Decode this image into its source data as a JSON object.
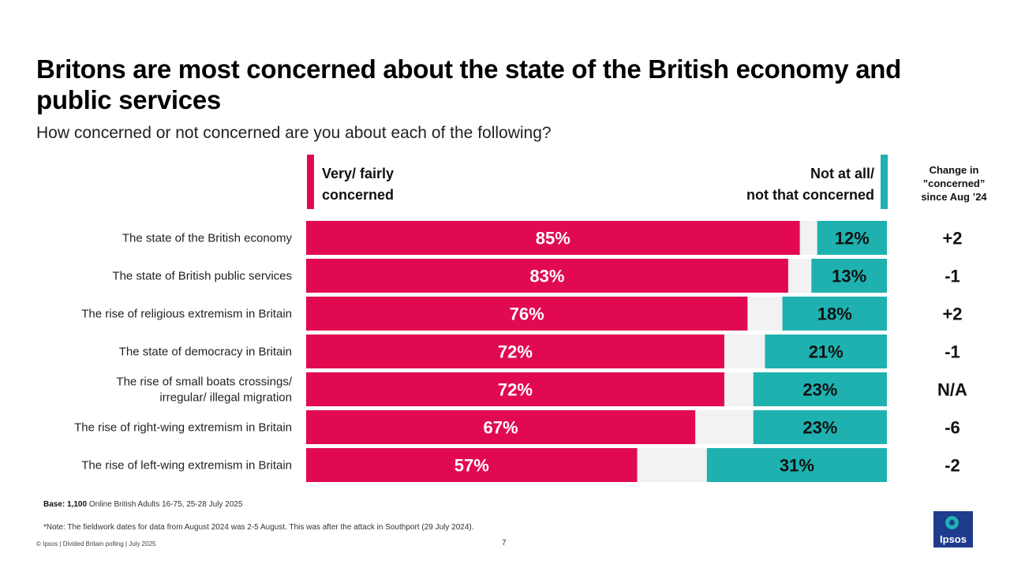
{
  "title": "Britons are most concerned about the state of the British economy and public services",
  "subtitle": "How concerned or not concerned are you about each of the following?",
  "legend": {
    "left_line1": "Very/ fairly",
    "left_line2": "concerned",
    "right_line1": "Not at all/",
    "right_line2": "not that concerned"
  },
  "change_header": {
    "line1": "Change in",
    "line2": "”concerned”",
    "line3": "since Aug ’24"
  },
  "colors": {
    "concerned": "#e10a50",
    "not_concerned": "#1eb1b0",
    "neither": "#f2f2f2"
  },
  "chart_data": {
    "type": "bar",
    "orientation": "horizontal",
    "stacked": true,
    "title": "How concerned or not concerned are you about each of the following?",
    "categories": [
      [
        "The state of the British economy"
      ],
      [
        "The state of British public services"
      ],
      [
        "The rise of religious extremism in Britain"
      ],
      [
        "The state of democracy in Britain"
      ],
      [
        "The rise of small boats crossings/",
        "irregular/ illegal migration"
      ],
      [
        "The rise of right-wing extremism in Britain"
      ],
      [
        "The rise of left-wing extremism in Britain"
      ]
    ],
    "series": [
      {
        "name": "Very/ fairly concerned",
        "values": [
          85,
          83,
          76,
          72,
          72,
          67,
          57
        ],
        "labels": [
          "85%",
          "83%",
          "76%",
          "72%",
          "72%",
          "67%",
          "57%"
        ]
      },
      {
        "name": "Not at all/ not that concerned",
        "values": [
          12,
          13,
          18,
          21,
          23,
          23,
          31
        ],
        "labels": [
          "12%",
          "13%",
          "18%",
          "21%",
          "23%",
          "23%",
          "31%"
        ]
      }
    ],
    "change_since_aug_24": [
      "+2",
      "-1",
      "+2",
      "-1",
      "N/A",
      "-6",
      "-2"
    ],
    "xlim": [
      0,
      100
    ]
  },
  "base": {
    "label": "Base: 1,100",
    "text": " Online British Adults 16-75, 25-28 July 2025"
  },
  "note": "*Note: The fieldwork dates for data from August 2024 was 2-5 August. This was after the attack in Southport (29 July 2024).",
  "footer": "© Ipsos | Divided Britain polling | July 2025",
  "page_number": "7",
  "logo_text": "Ipsos"
}
